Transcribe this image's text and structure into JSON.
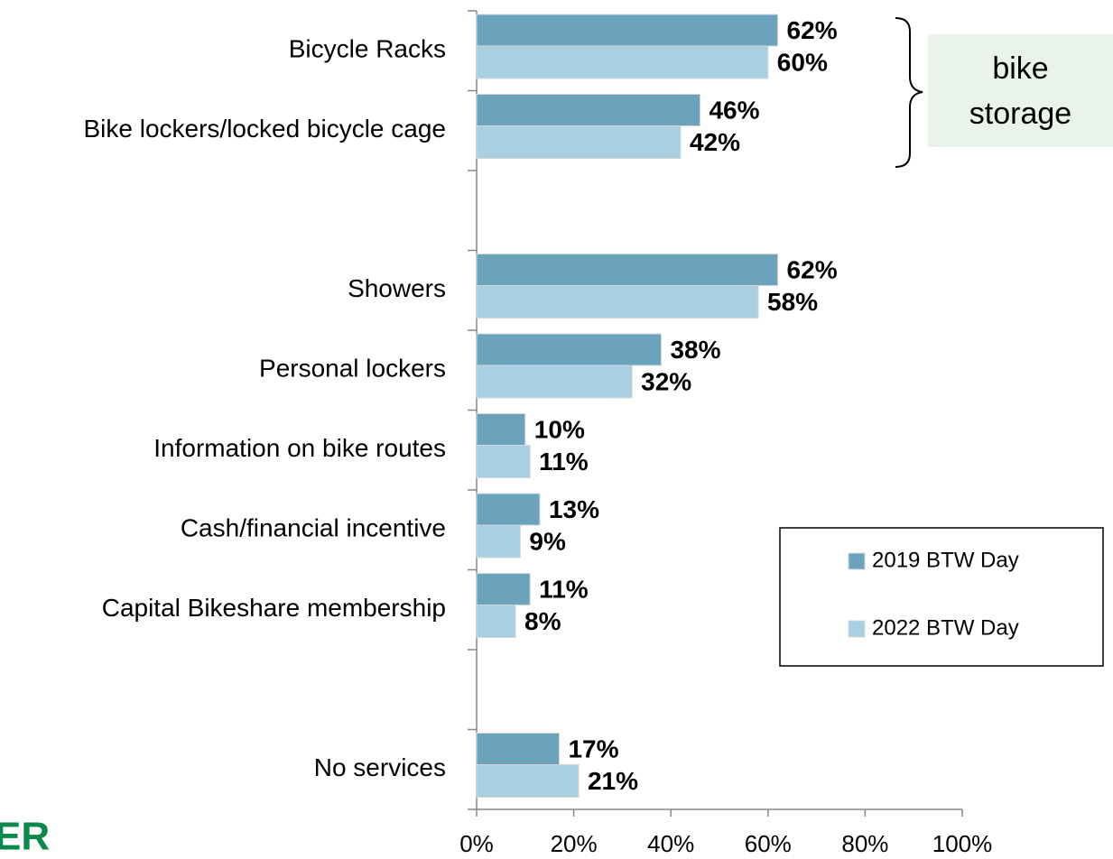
{
  "chart_data": {
    "type": "bar",
    "orientation": "horizontal",
    "categories": [
      "Bicycle Racks",
      "Bike lockers/locked bicycle cage",
      null,
      "Showers",
      "Personal lockers",
      "Information on bike routes",
      "Cash/financial incentive",
      "Capital Bikeshare membership",
      null,
      "No services"
    ],
    "series": [
      {
        "name": "2019 BTW Day",
        "color": "#6aa3bb",
        "values": [
          62,
          46,
          null,
          62,
          38,
          10,
          13,
          11,
          null,
          17
        ],
        "value_labels": [
          "62%",
          "46%",
          null,
          "62%",
          "38%",
          "10%",
          "13%",
          "11%",
          null,
          "17%"
        ]
      },
      {
        "name": "2022 BTW Day",
        "color": "#a9d0e0",
        "values": [
          60,
          42,
          null,
          58,
          32,
          11,
          9,
          8,
          null,
          21
        ],
        "value_labels": [
          "60%",
          "42%",
          null,
          "58%",
          "32%",
          "11%",
          "9%",
          "8%",
          null,
          "21%"
        ]
      }
    ],
    "xlim": [
      0,
      100
    ],
    "xticks": [
      {
        "value": 0,
        "label": "0%"
      },
      {
        "value": 20,
        "label": "20%"
      },
      {
        "value": 40,
        "label": "40%"
      },
      {
        "value": 60,
        "label": "60%"
      },
      {
        "value": 80,
        "label": "80%"
      },
      {
        "value": 100,
        "label": "100%"
      }
    ],
    "grid": false,
    "legend": "lower right",
    "annotation": "bike storage",
    "logo": "ER"
  }
}
